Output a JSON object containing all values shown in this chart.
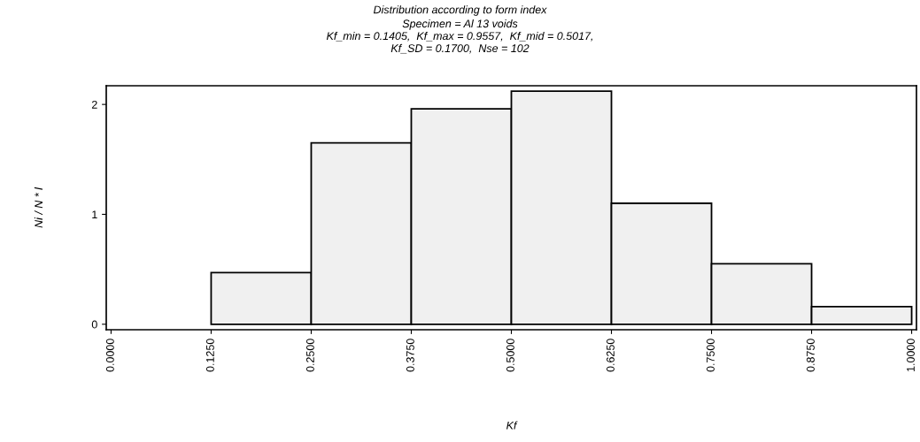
{
  "chart_data": {
    "type": "histogram",
    "title": "Distribution according to form index",
    "subtitle": "Specimen = Al 13 voids\nKf_min = 0.1405,  Kf_max = 0.9557,  Kf_mid = 0.5017,\nKf_SD = 0.1700,  Nse = 102",
    "xlabel": "Kf",
    "ylabel": "Ni / N * l",
    "bins": [
      0.125,
      0.25,
      0.375,
      0.5,
      0.625,
      0.75,
      0.875,
      1.0
    ],
    "values": [
      0.47,
      1.65,
      1.96,
      2.12,
      1.1,
      0.55,
      0.16
    ],
    "color": "#f0f0f0",
    "xlim": [
      -0.006,
      1.006
    ],
    "ylim": [
      -0.05,
      2.17
    ],
    "xticks": [
      {
        "value": 0,
        "label": "0.0000"
      },
      {
        "value": 0.125,
        "label": "0.1250"
      },
      {
        "value": 0.25,
        "label": "0.2500"
      },
      {
        "value": 0.375,
        "label": "0.3750"
      },
      {
        "value": 0.5,
        "label": "0.5000"
      },
      {
        "value": 0.625,
        "label": "0.6250"
      },
      {
        "value": 0.75,
        "label": "0.7500"
      },
      {
        "value": 0.875,
        "label": "0.8750"
      },
      {
        "value": 1,
        "label": "1.0000"
      }
    ],
    "yticks": [
      0,
      1,
      2
    ],
    "grid": false,
    "legend": false
  }
}
